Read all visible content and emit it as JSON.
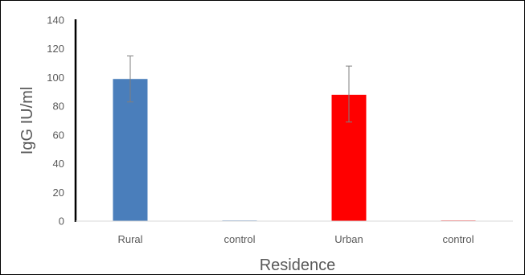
{
  "chart_data": {
    "type": "bar",
    "title": "",
    "xlabel": "Residence",
    "ylabel": "IgG  IU/ml",
    "ylim": [
      0,
      140
    ],
    "yticks": [
      0,
      20,
      40,
      60,
      80,
      100,
      120,
      140
    ],
    "ytick_labels": [
      "0",
      "20",
      "40",
      "60",
      "80",
      "100",
      "120",
      "140"
    ],
    "categories": [
      "Rural",
      "control",
      "Urban",
      "control"
    ],
    "values": [
      99,
      0,
      88,
      0
    ],
    "error_low": [
      83,
      0,
      69,
      0
    ],
    "error_high": [
      115,
      0,
      108,
      0
    ],
    "bar_colors": [
      "#4a7ebb",
      "#4a7ebb",
      "#ff0000",
      "#ff0000"
    ],
    "grid": false,
    "legend": "none"
  }
}
